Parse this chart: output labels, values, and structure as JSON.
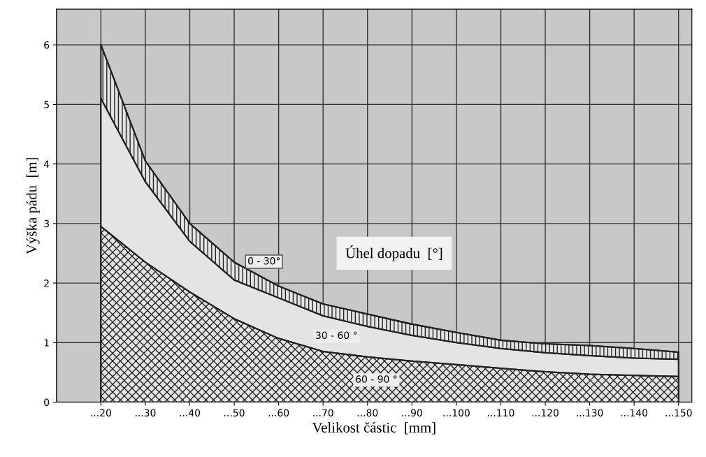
{
  "chart_data": {
    "type": "area",
    "xlabel": "Velikost částic  [mm]",
    "ylabel": "Výška pádu  [m]",
    "legend_title": "Úhel dopadu  [°]",
    "categories": [
      "...20",
      "...30",
      "...40",
      "...50",
      "...60",
      "...70",
      "...80",
      "...90",
      "...100",
      "...110",
      "...120",
      "...130",
      "...140",
      "...150"
    ],
    "series": [
      {
        "name": "0 - 30°",
        "color": "#222222",
        "values": [
          6.0,
          4.05,
          3.0,
          2.35,
          1.95,
          1.65,
          1.48,
          1.31,
          1.17,
          1.04,
          0.98,
          0.95,
          0.9,
          0.84
        ]
      },
      {
        "name": "30 - 60 °",
        "color": "#222222",
        "values": [
          5.1,
          3.7,
          2.7,
          2.05,
          1.75,
          1.45,
          1.27,
          1.12,
          1.0,
          0.9,
          0.83,
          0.78,
          0.74,
          0.72
        ]
      },
      {
        "name": "60 - 90 °",
        "color": "#222222",
        "values": [
          2.95,
          2.35,
          1.85,
          1.4,
          1.07,
          0.85,
          0.76,
          0.69,
          0.63,
          0.57,
          0.51,
          0.47,
          0.45,
          0.43
        ]
      }
    ],
    "ylim": [
      0,
      6.6
    ],
    "yticks": [
      0,
      1,
      2,
      3,
      4,
      5,
      6
    ],
    "grid": true
  }
}
